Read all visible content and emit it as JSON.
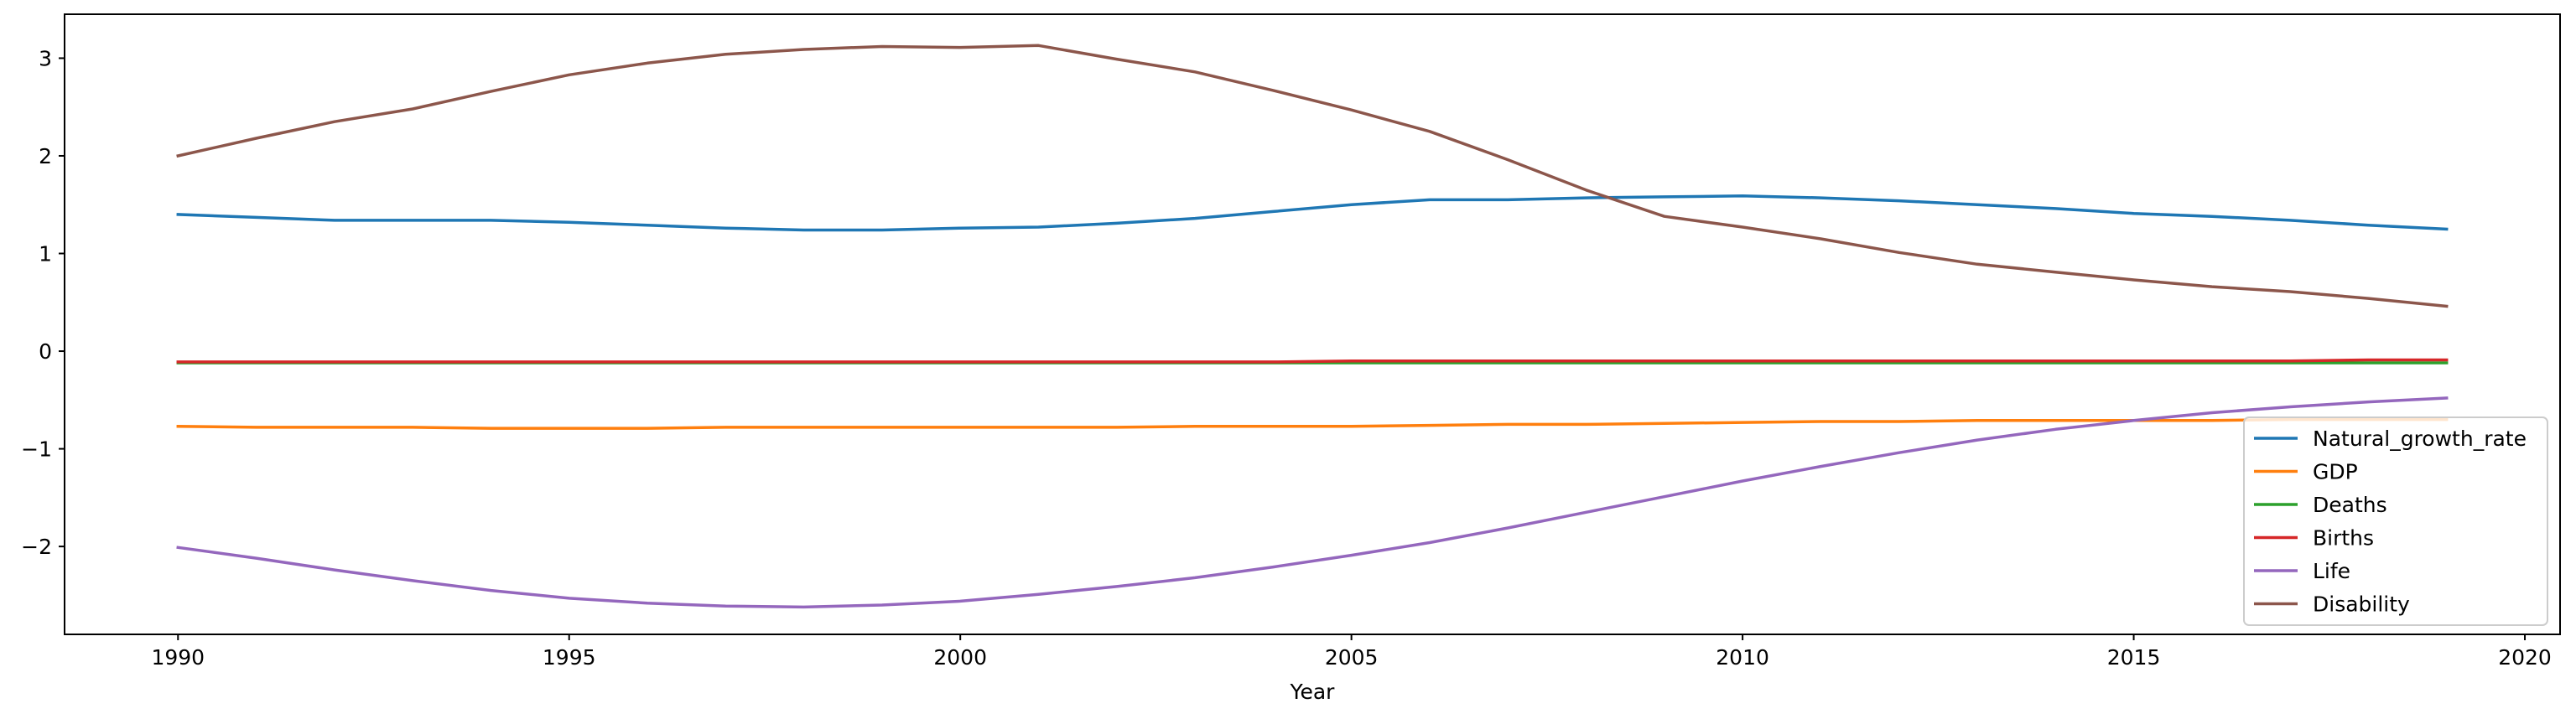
{
  "chart_data": {
    "type": "line",
    "title": "",
    "xlabel": "Year",
    "ylabel": "",
    "xlim": [
      1988.55,
      2020.45
    ],
    "ylim": [
      -2.9,
      3.45
    ],
    "x_ticks": [
      1990,
      1995,
      2000,
      2005,
      2010,
      2015,
      2020
    ],
    "y_ticks": [
      -2,
      -1,
      0,
      1,
      2,
      3
    ],
    "y_tick_labels": [
      "−2",
      "−1",
      "0",
      "1",
      "2",
      "3"
    ],
    "grid": false,
    "legend_position": "lower-right",
    "x": [
      1990,
      1991,
      1992,
      1993,
      1994,
      1995,
      1996,
      1997,
      1998,
      1999,
      2000,
      2001,
      2002,
      2003,
      2004,
      2005,
      2006,
      2007,
      2008,
      2009,
      2010,
      2011,
      2012,
      2013,
      2014,
      2015,
      2016,
      2017,
      2018,
      2019
    ],
    "series": [
      {
        "name": "Natural_growth_rate",
        "color": "#1f77b4",
        "values": [
          1.4,
          1.37,
          1.34,
          1.34,
          1.34,
          1.32,
          1.29,
          1.26,
          1.24,
          1.24,
          1.26,
          1.27,
          1.31,
          1.36,
          1.43,
          1.5,
          1.55,
          1.55,
          1.57,
          1.58,
          1.59,
          1.57,
          1.54,
          1.5,
          1.46,
          1.41,
          1.38,
          1.34,
          1.29,
          1.25
        ]
      },
      {
        "name": "GDP",
        "color": "#ff7f0e",
        "values": [
          -0.77,
          -0.78,
          -0.78,
          -0.78,
          -0.79,
          -0.79,
          -0.79,
          -0.78,
          -0.78,
          -0.78,
          -0.78,
          -0.78,
          -0.78,
          -0.77,
          -0.77,
          -0.77,
          -0.76,
          -0.75,
          -0.75,
          -0.74,
          -0.73,
          -0.72,
          -0.72,
          -0.71,
          -0.71,
          -0.71,
          -0.71,
          -0.7,
          -0.7,
          -0.7
        ]
      },
      {
        "name": "Deaths",
        "color": "#2ca02c",
        "values": [
          -0.12,
          -0.12,
          -0.12,
          -0.12,
          -0.12,
          -0.12,
          -0.12,
          -0.12,
          -0.12,
          -0.12,
          -0.12,
          -0.12,
          -0.12,
          -0.12,
          -0.12,
          -0.12,
          -0.12,
          -0.12,
          -0.12,
          -0.12,
          -0.12,
          -0.12,
          -0.12,
          -0.12,
          -0.12,
          -0.12,
          -0.12,
          -0.12,
          -0.12,
          -0.12
        ]
      },
      {
        "name": "Births",
        "color": "#d62728",
        "values": [
          -0.11,
          -0.11,
          -0.11,
          -0.11,
          -0.11,
          -0.11,
          -0.11,
          -0.11,
          -0.11,
          -0.11,
          -0.11,
          -0.11,
          -0.11,
          -0.11,
          -0.11,
          -0.1,
          -0.1,
          -0.1,
          -0.1,
          -0.1,
          -0.1,
          -0.1,
          -0.1,
          -0.1,
          -0.1,
          -0.1,
          -0.1,
          -0.1,
          -0.09,
          -0.09
        ]
      },
      {
        "name": "Life",
        "color": "#9467bd",
        "values": [
          -2.01,
          -2.12,
          -2.24,
          -2.35,
          -2.45,
          -2.53,
          -2.58,
          -2.61,
          -2.62,
          -2.6,
          -2.56,
          -2.49,
          -2.41,
          -2.32,
          -2.21,
          -2.09,
          -1.96,
          -1.81,
          -1.65,
          -1.49,
          -1.33,
          -1.18,
          -1.04,
          -0.91,
          -0.8,
          -0.71,
          -0.63,
          -0.57,
          -0.52,
          -0.48
        ]
      },
      {
        "name": "Disability",
        "color": "#8c564b",
        "values": [
          2.0,
          2.18,
          2.35,
          2.48,
          2.66,
          2.83,
          2.95,
          3.04,
          3.09,
          3.12,
          3.11,
          3.13,
          2.99,
          2.86,
          2.67,
          2.47,
          2.25,
          1.96,
          1.65,
          1.38,
          1.27,
          1.15,
          1.01,
          0.89,
          0.81,
          0.73,
          0.66,
          0.61,
          0.54,
          0.46
        ]
      }
    ]
  }
}
